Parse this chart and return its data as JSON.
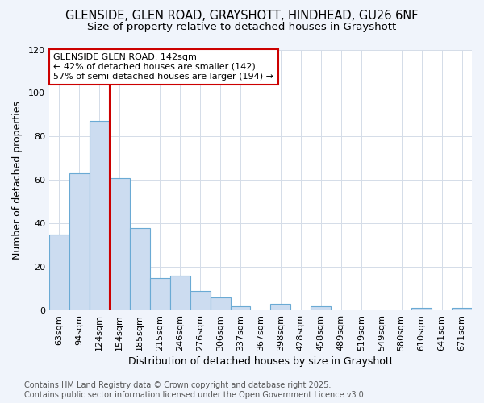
{
  "title_line1": "GLENSIDE, GLEN ROAD, GRAYSHOTT, HINDHEAD, GU26 6NF",
  "title_line2": "Size of property relative to detached houses in Grayshott",
  "xlabel": "Distribution of detached houses by size in Grayshott",
  "ylabel": "Number of detached properties",
  "categories": [
    "63sqm",
    "94sqm",
    "124sqm",
    "154sqm",
    "185sqm",
    "215sqm",
    "246sqm",
    "276sqm",
    "306sqm",
    "337sqm",
    "367sqm",
    "398sqm",
    "428sqm",
    "458sqm",
    "489sqm",
    "519sqm",
    "549sqm",
    "580sqm",
    "610sqm",
    "641sqm",
    "671sqm"
  ],
  "values": [
    35,
    63,
    87,
    61,
    38,
    15,
    16,
    9,
    6,
    2,
    0,
    3,
    0,
    2,
    0,
    0,
    0,
    0,
    1,
    0,
    1
  ],
  "bar_color": "#ccdcf0",
  "bar_edge_color": "#6aaad4",
  "annotation_text": "GLENSIDE GLEN ROAD: 142sqm\n← 42% of detached houses are smaller (142)\n57% of semi-detached houses are larger (194) →",
  "vline_x_index": 2,
  "vline_color": "#cc0000",
  "annotation_box_color": "#ffffff",
  "annotation_box_edge": "#cc0000",
  "ylim": [
    0,
    120
  ],
  "yticks": [
    0,
    20,
    40,
    60,
    80,
    100,
    120
  ],
  "grid_color": "#d4dce8",
  "footnote_line1": "Contains HM Land Registry data © Crown copyright and database right 2025.",
  "footnote_line2": "Contains public sector information licensed under the Open Government Licence v3.0.",
  "plot_bg_color": "#ffffff",
  "fig_bg_color": "#f0f4fb",
  "title_fontsize": 10.5,
  "subtitle_fontsize": 9.5,
  "axis_label_fontsize": 9,
  "tick_fontsize": 8,
  "annotation_fontsize": 8,
  "footnote_fontsize": 7
}
